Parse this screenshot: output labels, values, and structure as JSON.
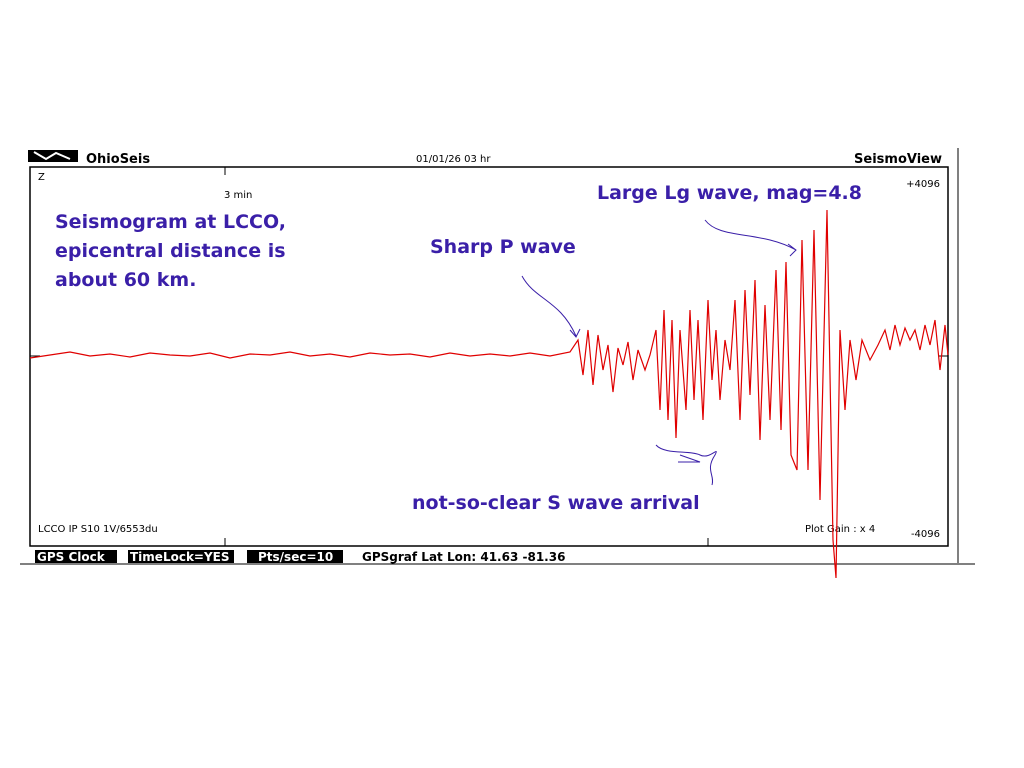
{
  "window": {
    "app": "OhioSeis",
    "datetime": "01/01/26  03 hr",
    "product": "SeismoView"
  },
  "plot": {
    "component": "Z",
    "time_scale": "3 min",
    "top_limit": "+4096",
    "bottom_limit": "-4096",
    "station_info": "LCCO IP S10 1V/6553du",
    "gain": "Plot Gain : x 4"
  },
  "annotations": {
    "station_note": [
      "Seismogram at LCCO,",
      "epicentral distance is",
      "about 60 km."
    ],
    "p_wave": "Sharp P wave",
    "lg_wave": "Large Lg wave, mag=4.8",
    "s_wave": "not-so-clear S wave arrival"
  },
  "status_bar": {
    "clock": "GPS Clock",
    "timelock": "TimeLock=YES",
    "rate": "Pts/sec=10",
    "location": "GPSgraf Lat Lon: 41.63   -81.36"
  }
}
